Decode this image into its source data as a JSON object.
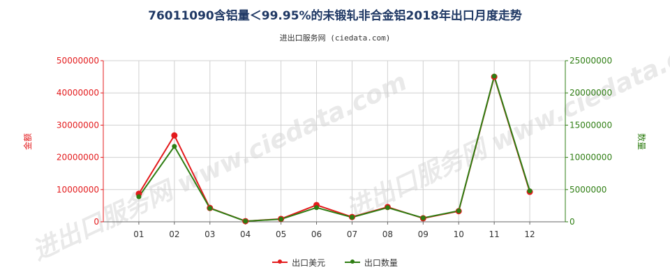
{
  "title": "76011090含铝量＜99.95%的未锻轧非合金铝2018年出口月度走势",
  "subtitle": "进出口服务网 (ciedata.com)",
  "watermark": "进出口服务网 www.ciedata.com",
  "colors": {
    "amount": "#e31a1c",
    "quantity": "#2e7d12",
    "grid": "#d0d0d0",
    "title": "#1f3864"
  },
  "chart_data": {
    "type": "line",
    "categories": [
      "01",
      "02",
      "03",
      "04",
      "05",
      "06",
      "07",
      "08",
      "09",
      "10",
      "11",
      "12"
    ],
    "ylabel_left": "金额",
    "ylabel_right": "数量",
    "ylim_left": [
      0,
      50000000
    ],
    "ylim_right": [
      0,
      25000000
    ],
    "yticks_left": [
      "0",
      "10000000",
      "20000000",
      "30000000",
      "40000000",
      "50000000"
    ],
    "yticks_right": [
      "0",
      "5000000",
      "10000000",
      "15000000",
      "20000000",
      "25000000"
    ],
    "grid": true,
    "legend_position": "bottom",
    "series": [
      {
        "name": "出口美元",
        "axis": "left",
        "color": "#e31a1c",
        "values": [
          8700000,
          26800000,
          4300000,
          200000,
          900000,
          5200000,
          1500000,
          4600000,
          1100000,
          3300000,
          45000000,
          9300000
        ]
      },
      {
        "name": "出口数量",
        "axis": "right",
        "color": "#2e7d12",
        "values": [
          3900000,
          11700000,
          2100000,
          100000,
          400000,
          2200000,
          700000,
          2200000,
          600000,
          1700000,
          22600000,
          4800000
        ]
      }
    ]
  }
}
